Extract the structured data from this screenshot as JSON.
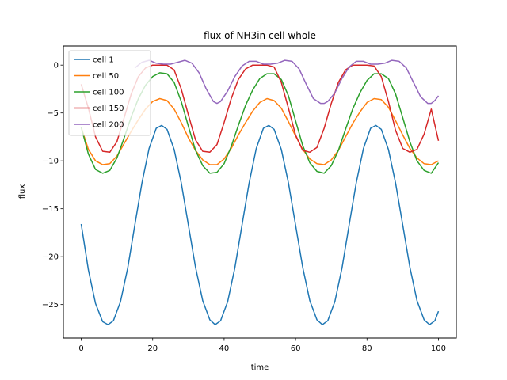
{
  "chart_data": {
    "type": "line",
    "title": "flux of NH3in cell whole",
    "xlabel": "time",
    "ylabel": "flux",
    "xlim": [
      -5,
      105
    ],
    "ylim": [
      -28.5,
      2
    ],
    "xticks": [
      0,
      20,
      40,
      60,
      80,
      100
    ],
    "yticks": [
      0,
      -5,
      -10,
      -15,
      -20,
      -25
    ],
    "grid": false,
    "legend": "top-left",
    "series": [
      {
        "name": "cell 1",
        "color": "#1f77b4",
        "x": [
          0,
          2,
          4,
          6,
          7.5,
          9,
          11,
          13,
          15,
          17,
          19,
          21,
          22.5,
          24,
          26,
          28,
          30,
          32,
          34,
          36,
          37.5,
          39,
          41,
          43,
          45,
          47,
          49,
          51,
          52.5,
          54,
          56,
          58,
          60,
          62,
          64,
          66,
          67.5,
          69,
          71,
          73,
          75,
          77,
          79,
          81,
          82.5,
          84,
          86,
          88,
          90,
          92,
          94,
          96,
          97.5,
          99,
          100
        ],
        "y": [
          -16.6,
          -21.4,
          -24.9,
          -26.8,
          -27.1,
          -26.7,
          -24.7,
          -21.2,
          -16.7,
          -12.3,
          -8.7,
          -6.6,
          -6.3,
          -6.7,
          -8.8,
          -12.3,
          -16.7,
          -21.1,
          -24.6,
          -26.6,
          -27.1,
          -26.7,
          -24.7,
          -21.2,
          -16.7,
          -12.3,
          -8.7,
          -6.6,
          -6.3,
          -6.7,
          -8.8,
          -12.3,
          -16.7,
          -21.1,
          -24.6,
          -26.6,
          -27.1,
          -26.7,
          -24.7,
          -21.2,
          -16.7,
          -12.3,
          -8.7,
          -6.6,
          -6.3,
          -6.7,
          -8.8,
          -12.3,
          -16.7,
          -21.1,
          -24.6,
          -26.6,
          -27.1,
          -26.7,
          -25.7
        ]
      },
      {
        "name": "cell 50",
        "color": "#ff7f0e",
        "x": [
          0,
          2,
          4,
          6,
          8,
          10,
          12,
          14,
          16,
          18,
          20,
          22,
          24,
          26,
          28,
          30,
          32,
          34,
          36,
          38,
          40,
          42,
          44,
          46,
          48,
          50,
          52,
          54,
          56,
          58,
          60,
          62,
          64,
          66,
          68,
          70,
          72,
          74,
          76,
          78,
          80,
          82,
          84,
          86,
          88,
          90,
          92,
          94,
          96,
          98,
          100
        ],
        "y": [
          -6.5,
          -8.8,
          -10.0,
          -10.4,
          -10.3,
          -9.5,
          -8.2,
          -6.9,
          -5.7,
          -4.6,
          -3.8,
          -3.5,
          -3.7,
          -4.6,
          -6.0,
          -7.6,
          -8.9,
          -9.9,
          -10.4,
          -10.4,
          -9.8,
          -8.7,
          -7.3,
          -6.0,
          -4.8,
          -3.9,
          -3.5,
          -3.7,
          -4.5,
          -5.9,
          -7.4,
          -8.8,
          -9.8,
          -10.3,
          -10.4,
          -9.9,
          -8.9,
          -7.5,
          -6.1,
          -4.9,
          -3.9,
          -3.5,
          -3.6,
          -4.4,
          -5.8,
          -7.3,
          -8.7,
          -9.7,
          -10.3,
          -10.4,
          -10.0
        ]
      },
      {
        "name": "cell 100",
        "color": "#2ca02c",
        "x": [
          0,
          2,
          4,
          6,
          8,
          10,
          12,
          14,
          16,
          18,
          20,
          22,
          24,
          26,
          28,
          30,
          32,
          34,
          36,
          38,
          40,
          42,
          44,
          46,
          48,
          50,
          52,
          54,
          56,
          58,
          60,
          62,
          64,
          66,
          68,
          70,
          72,
          74,
          76,
          78,
          80,
          82,
          84,
          86,
          88,
          90,
          92,
          94,
          96,
          98,
          100
        ],
        "y": [
          -6.5,
          -9.3,
          -10.9,
          -11.3,
          -11.0,
          -9.7,
          -7.6,
          -5.4,
          -3.5,
          -2.1,
          -1.2,
          -0.8,
          -0.9,
          -1.8,
          -3.8,
          -6.4,
          -8.9,
          -10.5,
          -11.3,
          -11.2,
          -10.3,
          -8.5,
          -6.3,
          -4.2,
          -2.6,
          -1.4,
          -0.9,
          -0.9,
          -1.5,
          -3.2,
          -5.8,
          -8.4,
          -10.2,
          -11.1,
          -11.3,
          -10.5,
          -8.9,
          -6.7,
          -4.6,
          -2.9,
          -1.6,
          -0.9,
          -0.9,
          -1.4,
          -3.0,
          -5.5,
          -8.0,
          -10.0,
          -11.0,
          -11.3,
          -10.2
        ]
      },
      {
        "name": "cell 150",
        "color": "#d62728",
        "x": [
          0,
          2,
          4,
          6,
          8,
          10,
          12,
          14,
          16,
          18,
          20,
          22,
          24,
          26,
          28,
          30,
          32,
          34,
          36,
          38,
          40,
          42,
          44,
          46,
          48,
          50,
          52,
          54,
          56,
          58,
          60,
          62,
          64,
          66,
          68,
          70,
          72,
          74,
          76,
          78,
          80,
          82,
          84,
          86,
          88,
          90,
          92,
          94,
          96,
          98,
          100
        ],
        "y": [
          -2.0,
          -4.5,
          -7.5,
          -9.0,
          -9.1,
          -8.0,
          -5.5,
          -3.0,
          -1.2,
          -0.3,
          0.0,
          0.0,
          0.0,
          -0.5,
          -2.5,
          -5.2,
          -7.8,
          -9.0,
          -9.1,
          -8.3,
          -6.0,
          -3.5,
          -1.5,
          -0.4,
          0.0,
          0.0,
          0.0,
          -0.2,
          -1.8,
          -4.5,
          -7.3,
          -8.9,
          -9.1,
          -8.6,
          -6.6,
          -4.0,
          -1.8,
          -0.5,
          0.0,
          0.0,
          0.0,
          -0.1,
          -1.2,
          -3.8,
          -6.8,
          -8.7,
          -9.1,
          -8.8,
          -7.2,
          -4.6,
          -7.9
        ]
      },
      {
        "name": "cell 200",
        "color": "#9467bd",
        "x": [
          15,
          17,
          19,
          21,
          23,
          25,
          27,
          29,
          31,
          33,
          35,
          37,
          38,
          39,
          41,
          43,
          45,
          47,
          49,
          51,
          53,
          55,
          57,
          59,
          61,
          63,
          65,
          67,
          68,
          69,
          71,
          73,
          75,
          77,
          79,
          81,
          83,
          85,
          87,
          89,
          91,
          93,
          95,
          97,
          98,
          99,
          100
        ],
        "y": [
          -0.3,
          0.3,
          0.5,
          0.2,
          0.1,
          0.1,
          0.3,
          0.5,
          0.2,
          -0.8,
          -2.5,
          -3.8,
          -4.0,
          -3.8,
          -2.7,
          -1.2,
          -0.1,
          0.4,
          0.4,
          0.1,
          0.1,
          0.2,
          0.5,
          0.4,
          -0.4,
          -2.0,
          -3.5,
          -4.0,
          -4.0,
          -3.8,
          -2.9,
          -1.4,
          -0.2,
          0.4,
          0.4,
          0.1,
          0.1,
          0.2,
          0.5,
          0.4,
          -0.3,
          -1.8,
          -3.3,
          -4.0,
          -4.0,
          -3.7,
          -3.2
        ]
      }
    ]
  }
}
